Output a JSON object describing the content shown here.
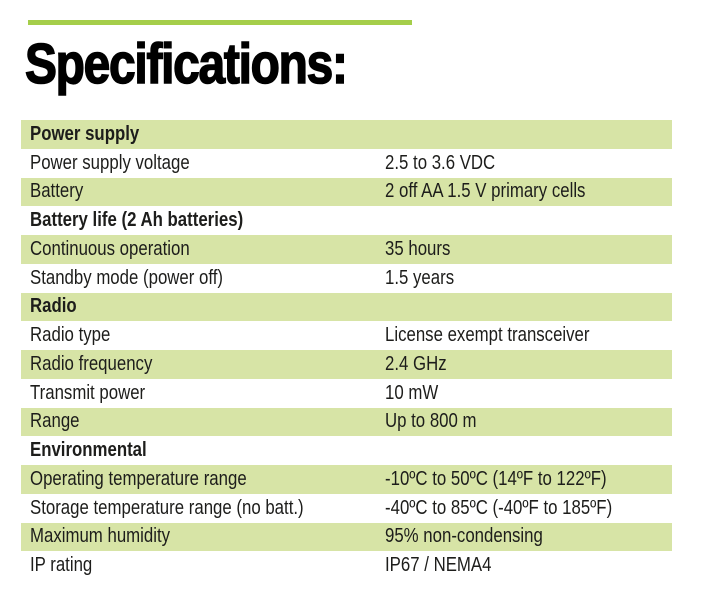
{
  "header": {
    "title": "Specifications:"
  },
  "colors": {
    "accent_green": "#a5ce4a",
    "row_green": "#d7e4a6",
    "text": "#1d1d1b"
  },
  "table": {
    "rows": [
      {
        "type": "section",
        "label": "Power supply",
        "value": ""
      },
      {
        "type": "data",
        "label": "Power supply voltage",
        "value": "2.5 to 3.6 VDC"
      },
      {
        "type": "data",
        "label": "Battery",
        "value": "2 off AA 1.5 V primary cells"
      },
      {
        "type": "section",
        "label": "Battery life (2 Ah batteries)",
        "value": ""
      },
      {
        "type": "data",
        "label": "Continuous operation",
        "value": "35 hours"
      },
      {
        "type": "data",
        "label": "Standby mode (power off)",
        "value": "1.5 years"
      },
      {
        "type": "section",
        "label": "Radio",
        "value": ""
      },
      {
        "type": "data",
        "label": "Radio type",
        "value": "License exempt transceiver"
      },
      {
        "type": "data",
        "label": "Radio frequency",
        "value": "2.4 GHz"
      },
      {
        "type": "data",
        "label": "Transmit power",
        "value": "10 mW"
      },
      {
        "type": "data",
        "label": "Range",
        "value": "Up to 800 m"
      },
      {
        "type": "section",
        "label": "Environmental",
        "value": ""
      },
      {
        "type": "data",
        "label": "Operating temperature range",
        "value": "-10ºC to 50ºC (14ºF to 122ºF)"
      },
      {
        "type": "data",
        "label": "Storage temperature range (no batt.)",
        "value": "-40ºC to 85ºC (-40ºF to 185ºF)"
      },
      {
        "type": "data",
        "label": "Maximum humidity",
        "value": "95% non-condensing"
      },
      {
        "type": "data",
        "label": "IP rating",
        "value": "IP67 / NEMA4"
      }
    ]
  }
}
